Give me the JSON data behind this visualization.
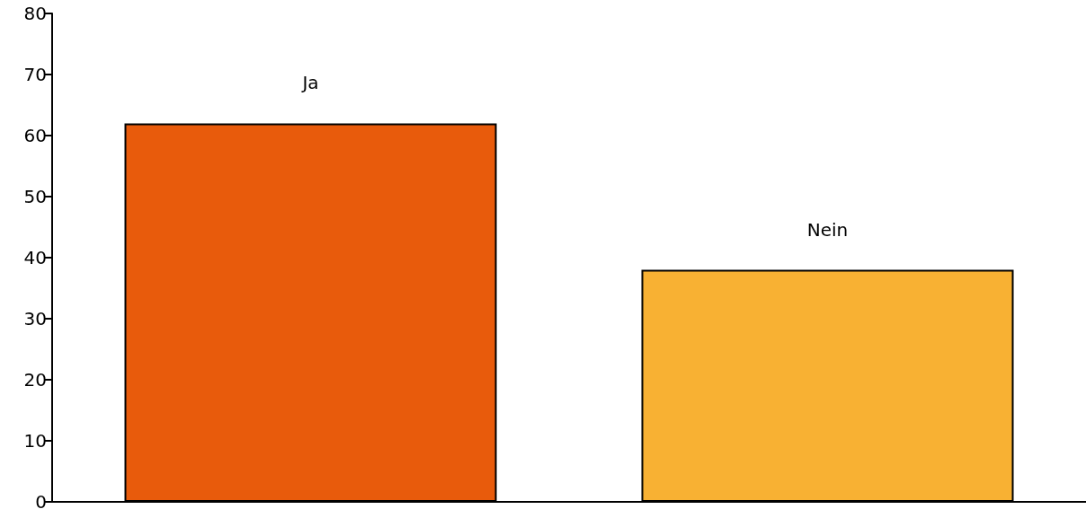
{
  "chart_data": {
    "type": "bar",
    "categories": [
      "Ja",
      "Nein"
    ],
    "values": [
      62,
      38
    ],
    "colors": [
      "#e85b0c",
      "#f8b133"
    ],
    "ylim": [
      0,
      80
    ],
    "yticks": [
      0,
      10,
      20,
      30,
      40,
      50,
      60,
      70,
      80
    ],
    "grid": false
  }
}
